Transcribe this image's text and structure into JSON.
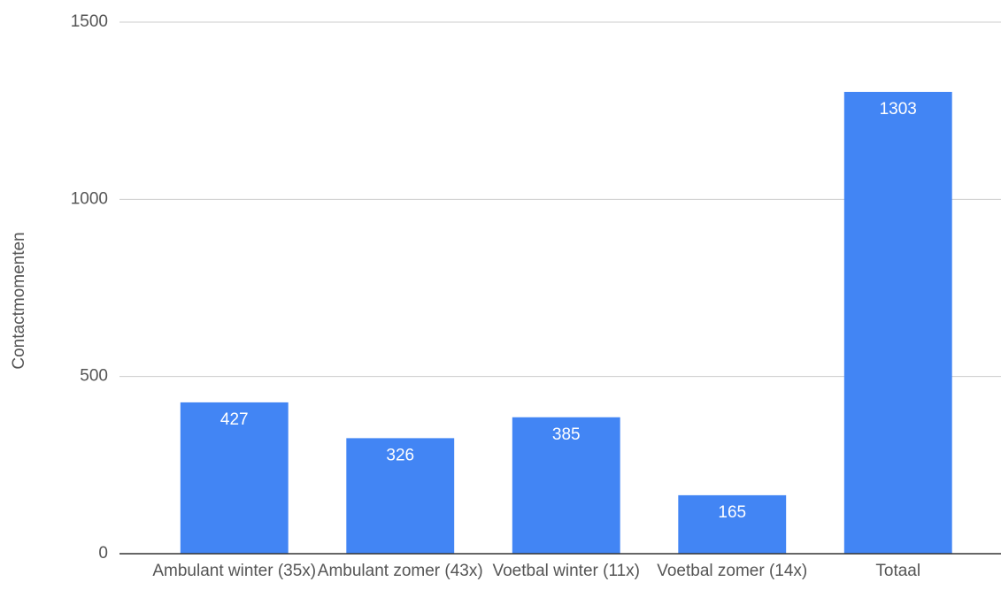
{
  "chart_data": {
    "type": "bar",
    "y_label": "Contactmomenten",
    "categories": [
      "Ambulant winter (35x)",
      "Ambulant zomer (43x)",
      "Voetbal winter (11x)",
      "Voetbal zomer (14x)",
      "Totaal"
    ],
    "values": [
      427,
      326,
      385,
      165,
      1303
    ],
    "color": "#4285f4",
    "ylim": [
      0,
      1500
    ],
    "yticks": [
      0,
      500,
      1000,
      1500
    ],
    "grid": true,
    "data_labels": true
  }
}
